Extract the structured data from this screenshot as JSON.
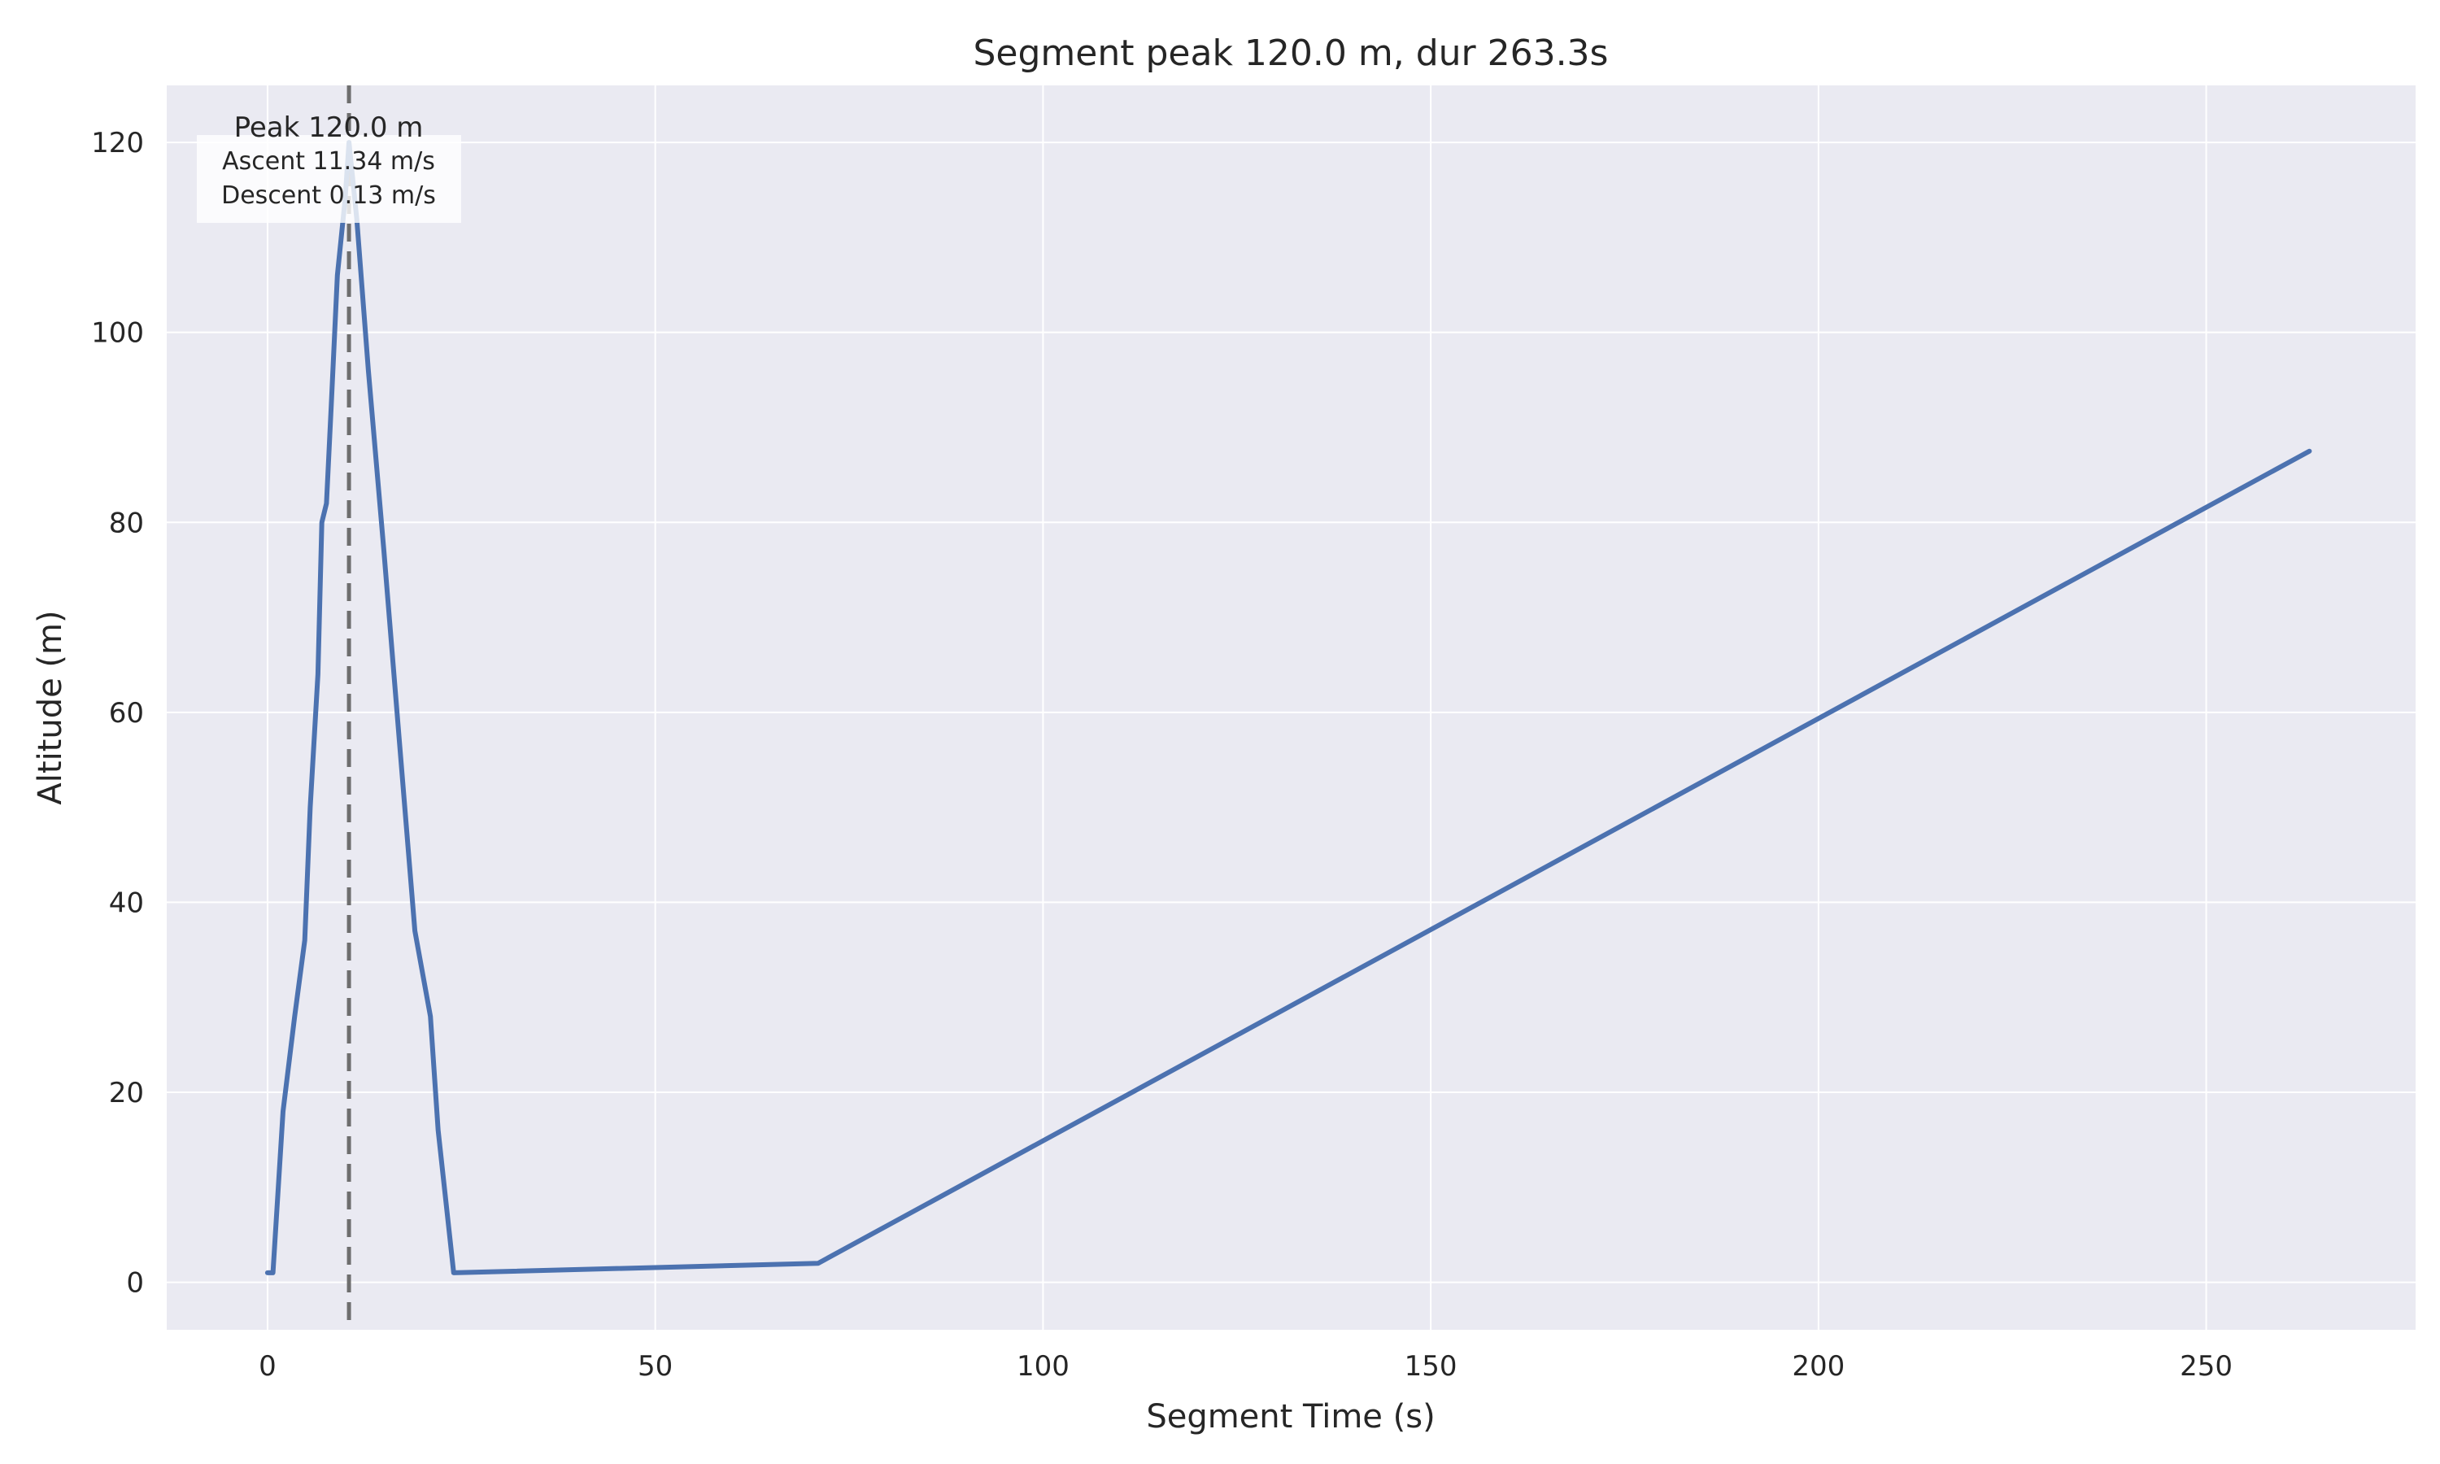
{
  "chart_data": {
    "type": "line",
    "title": "Segment peak 120.0 m, dur 263.3s",
    "xlabel": "Segment Time (s)",
    "ylabel": "Altitude (m)",
    "xlim": [
      -13,
      277
    ],
    "ylim": [
      -5,
      126
    ],
    "xticks": [
      0,
      50,
      100,
      150,
      200,
      250
    ],
    "yticks": [
      0,
      20,
      40,
      60,
      80,
      100,
      120
    ],
    "grid": true,
    "series": [
      {
        "color": "#4c72b0",
        "x": [
          0,
          0.7,
          2,
          3.5,
          4.8,
          5.5,
          6.5,
          7,
          7.6,
          8.2,
          9,
          10,
          10.5,
          11.5,
          13,
          15,
          17,
          19,
          21,
          22,
          24,
          71,
          263.3
        ],
        "y": [
          1,
          1,
          18,
          28,
          36,
          50,
          64,
          80,
          82,
          92,
          106,
          114,
          120,
          112,
          96,
          77,
          57,
          37,
          28,
          16,
          1,
          2,
          87.5
        ]
      }
    ],
    "vline": {
      "x": 10.5,
      "style": "dashed",
      "color": "#6e6e6e"
    },
    "annotation": {
      "peak": "Peak 120.0 m",
      "ascent": "Ascent 11.34 m/s",
      "descent": "Descent 0.13 m/s"
    }
  },
  "colors": {
    "plot_background": "#eaeaf2",
    "grid": "#ffffff",
    "line": "#4c72b0"
  }
}
